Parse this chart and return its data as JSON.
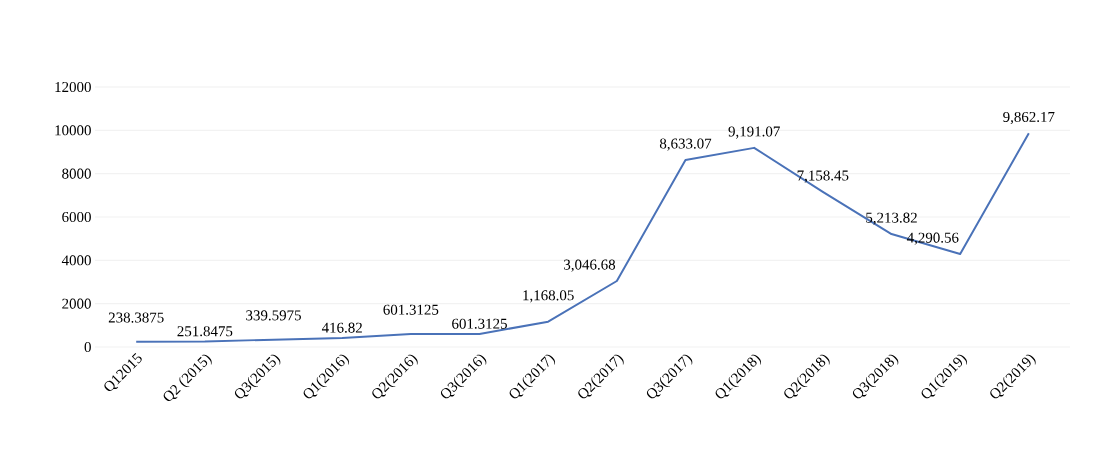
{
  "chart_data": {
    "type": "line",
    "categories": [
      "Q12015",
      "Q2 (2015)",
      "Q3(2015)",
      "Q1(2016)",
      "Q2(2016)",
      "Q3(2016)",
      "Q1(2017)",
      "Q2(2017)",
      "Q3(2017)",
      "Q1(2018)",
      "Q2(2018)",
      "Q3(2018)",
      "Q1(2019)",
      "Q2(2019)"
    ],
    "values": [
      238.3875,
      251.8475,
      339.5975,
      416.82,
      601.3125,
      601.3125,
      1168.05,
      3046.68,
      8633.07,
      9191.07,
      7158.45,
      5213.82,
      4290.56,
      9862.17
    ],
    "value_labels": [
      "238.3875",
      "251.8475",
      "339.5975",
      "416.82",
      "601.3125",
      "601.3125",
      "1,168.05",
      "3,046.68",
      "8,633.07",
      "9,191.07",
      "7,158.45",
      "5,213.82",
      "4,290.56",
      "9,862.17"
    ],
    "color": "#4a72b8",
    "ylim": [
      0,
      12000
    ],
    "yticks": [
      0,
      2000,
      4000,
      6000,
      8000,
      10000,
      12000
    ],
    "grid": "y",
    "marker": "none",
    "line_style": "solid"
  }
}
